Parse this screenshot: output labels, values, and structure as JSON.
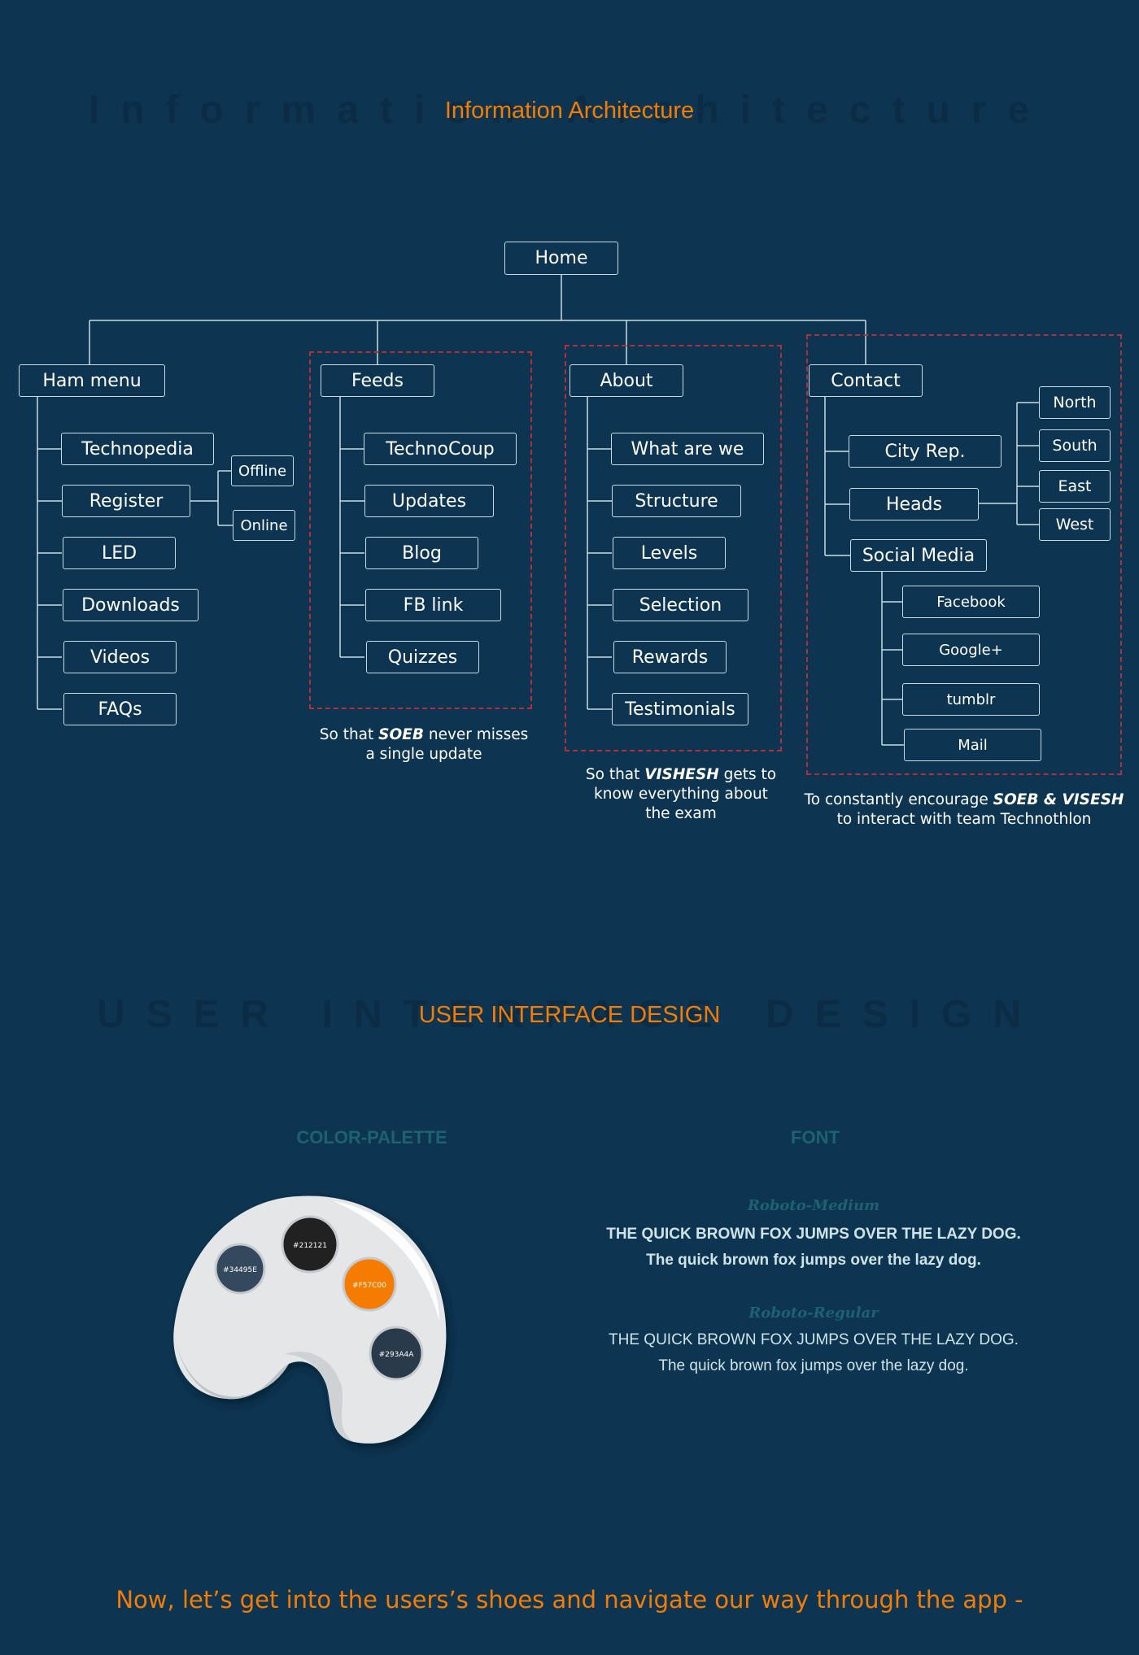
{
  "ia": {
    "ghost_title": "Information Architecture",
    "title": "Information Architecture",
    "home": "Home",
    "ham": {
      "label": "Ham menu",
      "items": [
        "Technopedia",
        "Register",
        "LED",
        "Downloads",
        "Videos",
        "FAQs"
      ],
      "register_options": [
        "Offline",
        "Online"
      ]
    },
    "feeds": {
      "label": "Feeds",
      "items": [
        "TechnoCoup",
        "Updates",
        "Blog",
        "FB link",
        "Quizzes"
      ],
      "caption_pre": "So that ",
      "caption_em": "SOEB",
      "caption_post": " never misses",
      "caption_line2": "a single update"
    },
    "about": {
      "label": "About",
      "items": [
        "What are we",
        "Structure",
        "Levels",
        "Selection",
        "Rewards",
        "Testimonials"
      ],
      "caption_pre": "So that ",
      "caption_em": "VISHESH",
      "caption_post": " gets to",
      "caption_line2": "know everything about",
      "caption_line3": "the exam"
    },
    "contact": {
      "label": "Contact",
      "items": [
        "City Rep.",
        "Heads",
        "Social Media"
      ],
      "heads_regions": [
        "North",
        "South",
        "East",
        "West"
      ],
      "social": [
        "Facebook",
        "Google+",
        "tumblr",
        "Mail"
      ],
      "caption_pre": "To constantly encourage ",
      "caption_em": "SOEB & VISESH",
      "caption_line2": "to interact with team Technothlon"
    }
  },
  "ui": {
    "ghost_title": "USER INTERFACE DESIGN",
    "title": "USER INTERFACE DESIGN",
    "palette_heading": "COLOR-PALETTE",
    "palette": [
      {
        "label": "#34495E",
        "hex": "#34495E"
      },
      {
        "label": "#212121",
        "hex": "#212121"
      },
      {
        "label": "#F57C00",
        "hex": "#F57C00"
      },
      {
        "label": "#293A4A",
        "hex": "#293A4A"
      }
    ],
    "font_heading": "FONT",
    "fonts": [
      {
        "name": "Roboto-Medium",
        "upper": "THE QUICK BROWN FOX JUMPS OVER THE LAZY DOG.",
        "lower": "The quick brown fox jumps over the lazy dog."
      },
      {
        "name": "Roboto-Regular",
        "upper": "THE QUICK BROWN FOX JUMPS OVER THE LAZY DOG.",
        "lower": "The quick brown fox jumps over the lazy dog."
      }
    ]
  },
  "footer": "Now, let’s get into the users’s shoes and navigate our way through the app -"
}
